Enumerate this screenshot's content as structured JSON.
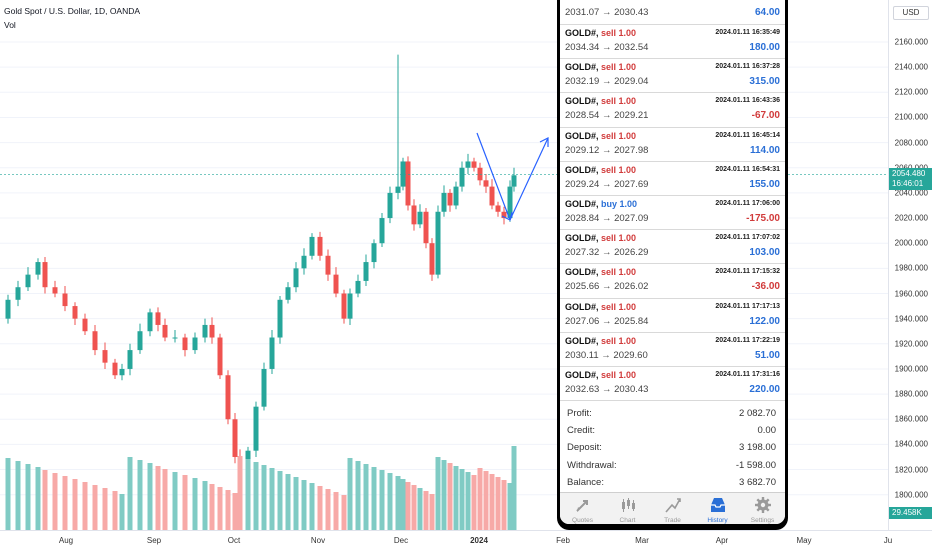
{
  "header": {
    "symbol_title": "Gold Spot / U.S. Dollar, 1D, OANDA",
    "vol_label": "Vol"
  },
  "price_axis": {
    "currency": "USD",
    "ticks": [
      "2160.000",
      "2140.000",
      "2120.000",
      "2100.000",
      "2080.000",
      "2060.000",
      "2040.000",
      "2020.000",
      "2000.000",
      "1980.000",
      "1960.000",
      "1940.000",
      "1920.000",
      "1900.000",
      "1880.000",
      "1860.000",
      "1840.000",
      "1820.000",
      "1800.000"
    ],
    "tick_values": [
      2160,
      2140,
      2120,
      2100,
      2080,
      2060,
      2040,
      2020,
      2000,
      1980,
      1960,
      1940,
      1920,
      1900,
      1880,
      1860,
      1840,
      1820,
      1800
    ],
    "last_price": "2054.480",
    "countdown": "16:46:01",
    "volume_tag": "29.458K",
    "last_price_color": "#26a69a"
  },
  "time_axis": {
    "labels": [
      "Aug",
      "Sep",
      "Oct",
      "Nov",
      "Dec",
      "2024",
      "Feb",
      "Mar",
      "Apr",
      "May",
      "Ju"
    ]
  },
  "colors": {
    "up": "#26a69a",
    "down": "#ef5350",
    "vol_up": "#80cbc4",
    "vol_down": "#f7a9a7",
    "arrow": "#2962ff"
  },
  "phone": {
    "top_partial": {
      "prices": "2031.07 → 2030.43",
      "profit": "64.00"
    },
    "trades": [
      {
        "symbol": "GOLD#,",
        "side": "sell 1.00",
        "type": "sell",
        "time": "2024.01.11 16:35:49",
        "prices": "2034.34 → 2032.54",
        "profit": "180.00",
        "positive": true
      },
      {
        "symbol": "GOLD#,",
        "side": "sell 1.00",
        "type": "sell",
        "time": "2024.01.11 16:37:28",
        "prices": "2032.19 → 2029.04",
        "profit": "315.00",
        "positive": true
      },
      {
        "symbol": "GOLD#,",
        "side": "sell 1.00",
        "type": "sell",
        "time": "2024.01.11 16:43:36",
        "prices": "2028.54 → 2029.21",
        "profit": "-67.00",
        "positive": false
      },
      {
        "symbol": "GOLD#,",
        "side": "sell 1.00",
        "type": "sell",
        "time": "2024.01.11 16:45:14",
        "prices": "2029.12 → 2027.98",
        "profit": "114.00",
        "positive": true
      },
      {
        "symbol": "GOLD#,",
        "side": "sell 1.00",
        "type": "sell",
        "time": "2024.01.11 16:54:31",
        "prices": "2029.24 → 2027.69",
        "profit": "155.00",
        "positive": true
      },
      {
        "symbol": "GOLD#,",
        "side": "buy 1.00",
        "type": "buy",
        "time": "2024.01.11 17:06:00",
        "prices": "2028.84 → 2027.09",
        "profit": "-175.00",
        "positive": false
      },
      {
        "symbol": "GOLD#,",
        "side": "sell 1.00",
        "type": "sell",
        "time": "2024.01.11 17:07:02",
        "prices": "2027.32 → 2026.29",
        "profit": "103.00",
        "positive": true
      },
      {
        "symbol": "GOLD#,",
        "side": "sell 1.00",
        "type": "sell",
        "time": "2024.01.11 17:15:32",
        "prices": "2025.66 → 2026.02",
        "profit": "-36.00",
        "positive": false
      },
      {
        "symbol": "GOLD#,",
        "side": "sell 1.00",
        "type": "sell",
        "time": "2024.01.11 17:17:13",
        "prices": "2027.06 → 2025.84",
        "profit": "122.00",
        "positive": true
      },
      {
        "symbol": "GOLD#,",
        "side": "sell 1.00",
        "type": "sell",
        "time": "2024.01.11 17:22:19",
        "prices": "2030.11 → 2029.60",
        "profit": "51.00",
        "positive": true
      },
      {
        "symbol": "GOLD#,",
        "side": "sell 1.00",
        "type": "sell",
        "time": "2024.01.11 17:31:16",
        "prices": "2032.63 → 2030.43",
        "profit": "220.00",
        "positive": true
      }
    ],
    "summary": [
      {
        "label": "Profit:",
        "value": "2 082.70"
      },
      {
        "label": "Credit:",
        "value": "0.00"
      },
      {
        "label": "Deposit:",
        "value": "3 198.00"
      },
      {
        "label": "Withdrawal:",
        "value": "-1 598.00"
      },
      {
        "label": "Balance:",
        "value": "3 682.70"
      }
    ],
    "tabs": [
      {
        "label": "Quotes",
        "icon": "quotes-icon",
        "active": false
      },
      {
        "label": "Chart",
        "icon": "candlestick-chart-icon",
        "active": false
      },
      {
        "label": "Trade",
        "icon": "trade-icon",
        "active": false
      },
      {
        "label": "History",
        "icon": "history-inbox-icon",
        "active": true
      },
      {
        "label": "Settings",
        "icon": "gear-icon",
        "active": false
      }
    ]
  }
}
